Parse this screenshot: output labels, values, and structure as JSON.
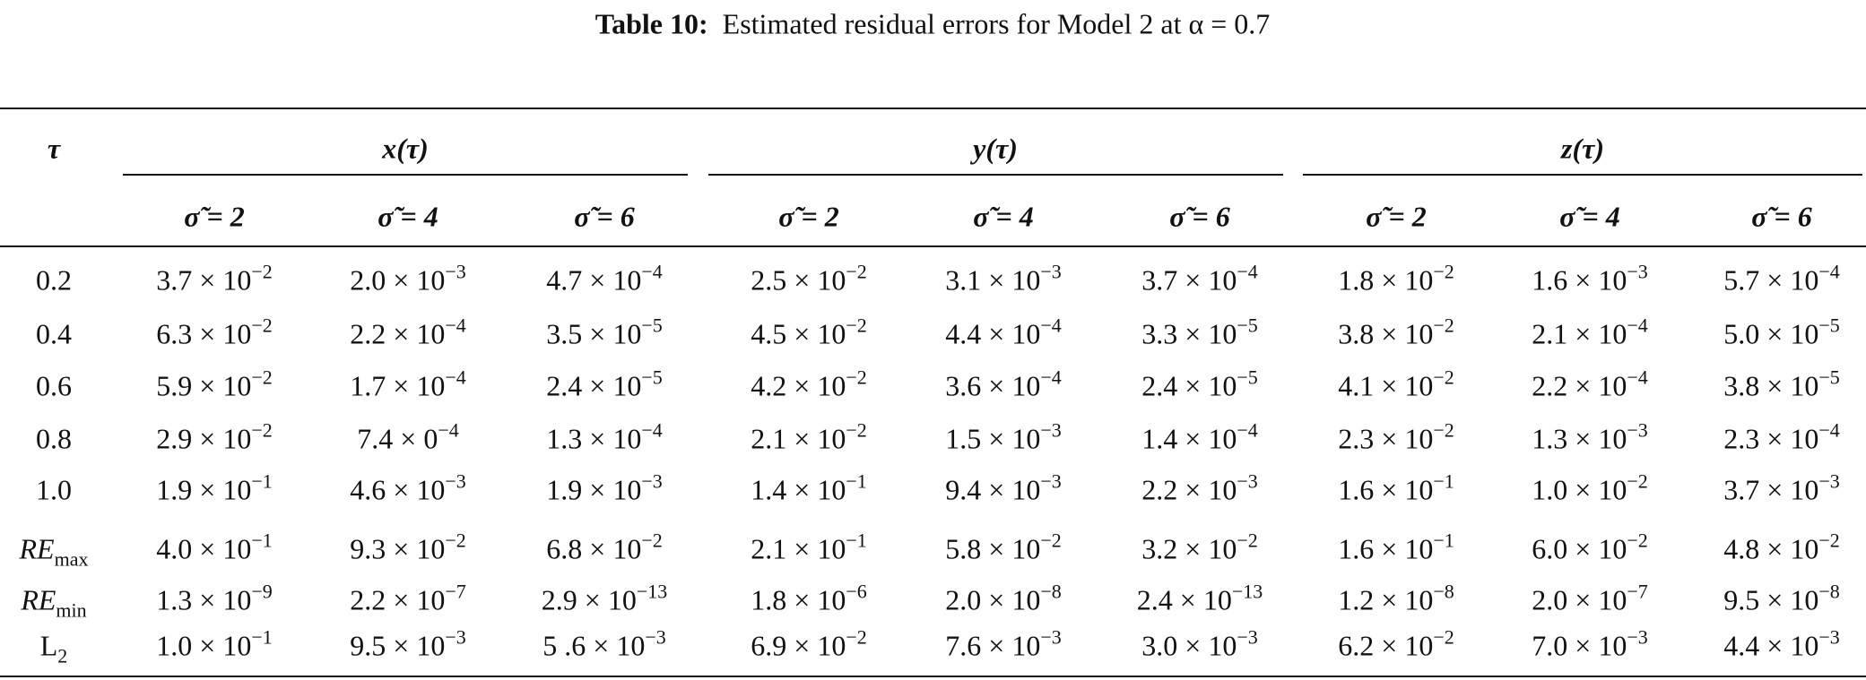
{
  "caption": {
    "label": "Table 10:",
    "text": "Estimated residual errors for Model 2 at α = 0.7"
  },
  "table": {
    "corner": "τ",
    "groups": [
      "x(τ)",
      "y(τ)",
      "z(τ)"
    ],
    "subheaders": [
      "σ̃ = 2",
      "σ̃ = 4",
      "σ̃ = 6",
      "σ̃ = 2",
      "σ̃ = 4",
      "σ̃ = 6",
      "σ̃ = 2",
      "σ̃ = 4",
      "σ̃ = 6"
    ],
    "rows": [
      {
        "label": {
          "base": "0.2"
        },
        "cells": [
          {
            "base": "3.7 × 10",
            "exp": "−2"
          },
          {
            "base": "2.0 × 10",
            "exp": "−3"
          },
          {
            "base": "4.7 × 10",
            "exp": "−4"
          },
          {
            "base": "2.5 × 10",
            "exp": "−2"
          },
          {
            "base": "3.1 × 10",
            "exp": "−3"
          },
          {
            "base": "3.7 × 10",
            "exp": "−4"
          },
          {
            "base": "1.8 × 10",
            "exp": "−2"
          },
          {
            "base": "1.6 × 10",
            "exp": "−3"
          },
          {
            "base": "5.7 × 10",
            "exp": "−4"
          }
        ]
      },
      {
        "label": {
          "base": "0.4"
        },
        "cells": [
          {
            "base": "6.3 × 10",
            "exp": "−2"
          },
          {
            "base": "2.2 × 10",
            "exp": "−4"
          },
          {
            "base": "3.5 × 10",
            "exp": "−5"
          },
          {
            "base": "4.5 × 10",
            "exp": "−2"
          },
          {
            "base": "4.4 × 10",
            "exp": "−4"
          },
          {
            "base": "3.3 × 10",
            "exp": "−5"
          },
          {
            "base": "3.8 × 10",
            "exp": "−2"
          },
          {
            "base": "2.1 × 10",
            "exp": "−4"
          },
          {
            "base": "5.0 × 10",
            "exp": "−5"
          }
        ]
      },
      {
        "label": {
          "base": "0.6"
        },
        "cells": [
          {
            "base": "5.9 × 10",
            "exp": "−2"
          },
          {
            "base": "1.7 × 10",
            "exp": "−4"
          },
          {
            "base": "2.4 × 10",
            "exp": "−5"
          },
          {
            "base": "4.2 × 10",
            "exp": "−2"
          },
          {
            "base": "3.6 × 10",
            "exp": "−4"
          },
          {
            "base": "2.4 × 10",
            "exp": "−5"
          },
          {
            "base": "4.1 × 10",
            "exp": "−2"
          },
          {
            "base": "2.2 × 10",
            "exp": "−4"
          },
          {
            "base": "3.8 × 10",
            "exp": "−5"
          }
        ]
      },
      {
        "label": {
          "base": "0.8"
        },
        "cells": [
          {
            "base": "2.9 × 10",
            "exp": "−2"
          },
          {
            "base": "7.4 × 0",
            "exp": "−4"
          },
          {
            "base": "1.3 × 10",
            "exp": "−4"
          },
          {
            "base": "2.1 × 10",
            "exp": "−2"
          },
          {
            "base": "1.5 × 10",
            "exp": "−3"
          },
          {
            "base": "1.4 × 10",
            "exp": "−4"
          },
          {
            "base": "2.3 × 10",
            "exp": "−2"
          },
          {
            "base": "1.3 × 10",
            "exp": "−3"
          },
          {
            "base": "2.3 × 10",
            "exp": "−4"
          }
        ]
      },
      {
        "label": {
          "base": "1.0"
        },
        "cells": [
          {
            "base": "1.9 × 10",
            "exp": "−1"
          },
          {
            "base": "4.6 × 10",
            "exp": "−3"
          },
          {
            "base": "1.9 × 10",
            "exp": "−3"
          },
          {
            "base": "1.4 × 10",
            "exp": "−1"
          },
          {
            "base": "9.4 × 10",
            "exp": "−3"
          },
          {
            "base": "2.2 × 10",
            "exp": "−3"
          },
          {
            "base": "1.6 × 10",
            "exp": "−1"
          },
          {
            "base": "1.0 × 10",
            "exp": "−2"
          },
          {
            "base": "3.7 × 10",
            "exp": "−3"
          }
        ]
      },
      {
        "label": {
          "base": "RE",
          "sub": "max"
        },
        "cells": [
          {
            "base": "4.0 × 10",
            "exp": "−1"
          },
          {
            "base": "9.3 × 10",
            "exp": "−2"
          },
          {
            "base": "6.8 × 10",
            "exp": "−2"
          },
          {
            "base": "2.1 × 10",
            "exp": "−1"
          },
          {
            "base": "5.8 × 10",
            "exp": "−2"
          },
          {
            "base": "3.2 × 10",
            "exp": "−2"
          },
          {
            "base": "1.6 × 10",
            "exp": "−1"
          },
          {
            "base": "6.0 × 10",
            "exp": "−2"
          },
          {
            "base": "4.8 × 10",
            "exp": "−2"
          }
        ]
      },
      {
        "label": {
          "base": "RE",
          "sub": "min"
        },
        "cells": [
          {
            "base": "1.3 × 10",
            "exp": "−9"
          },
          {
            "base": "2.2 × 10",
            "exp": "−7"
          },
          {
            "base": "2.9 × 10",
            "exp": "−13"
          },
          {
            "base": "1.8 × 10",
            "exp": "−6"
          },
          {
            "base": "2.0 × 10",
            "exp": "−8"
          },
          {
            "base": "2.4 × 10",
            "exp": "−13"
          },
          {
            "base": "1.2 × 10",
            "exp": "−8"
          },
          {
            "base": "2.0 × 10",
            "exp": "−7"
          },
          {
            "base": "9.5 × 10",
            "exp": "−8"
          }
        ]
      },
      {
        "label": {
          "base": "L",
          "sub": "2"
        },
        "cells": [
          {
            "base": "1.0 × 10",
            "exp": "−1"
          },
          {
            "base": "9.5 × 10",
            "exp": "−3"
          },
          {
            "base": "5 .6 × 10",
            "exp": "−3"
          },
          {
            "base": "6.9 × 10",
            "exp": "−2"
          },
          {
            "base": "7.6 × 10",
            "exp": "−3"
          },
          {
            "base": "3.0 × 10",
            "exp": "−3"
          },
          {
            "base": "6.2 × 10",
            "exp": "−2"
          },
          {
            "base": "7.0 × 10",
            "exp": "−3"
          },
          {
            "base": "4.4 × 10",
            "exp": "−3"
          }
        ]
      }
    ]
  }
}
